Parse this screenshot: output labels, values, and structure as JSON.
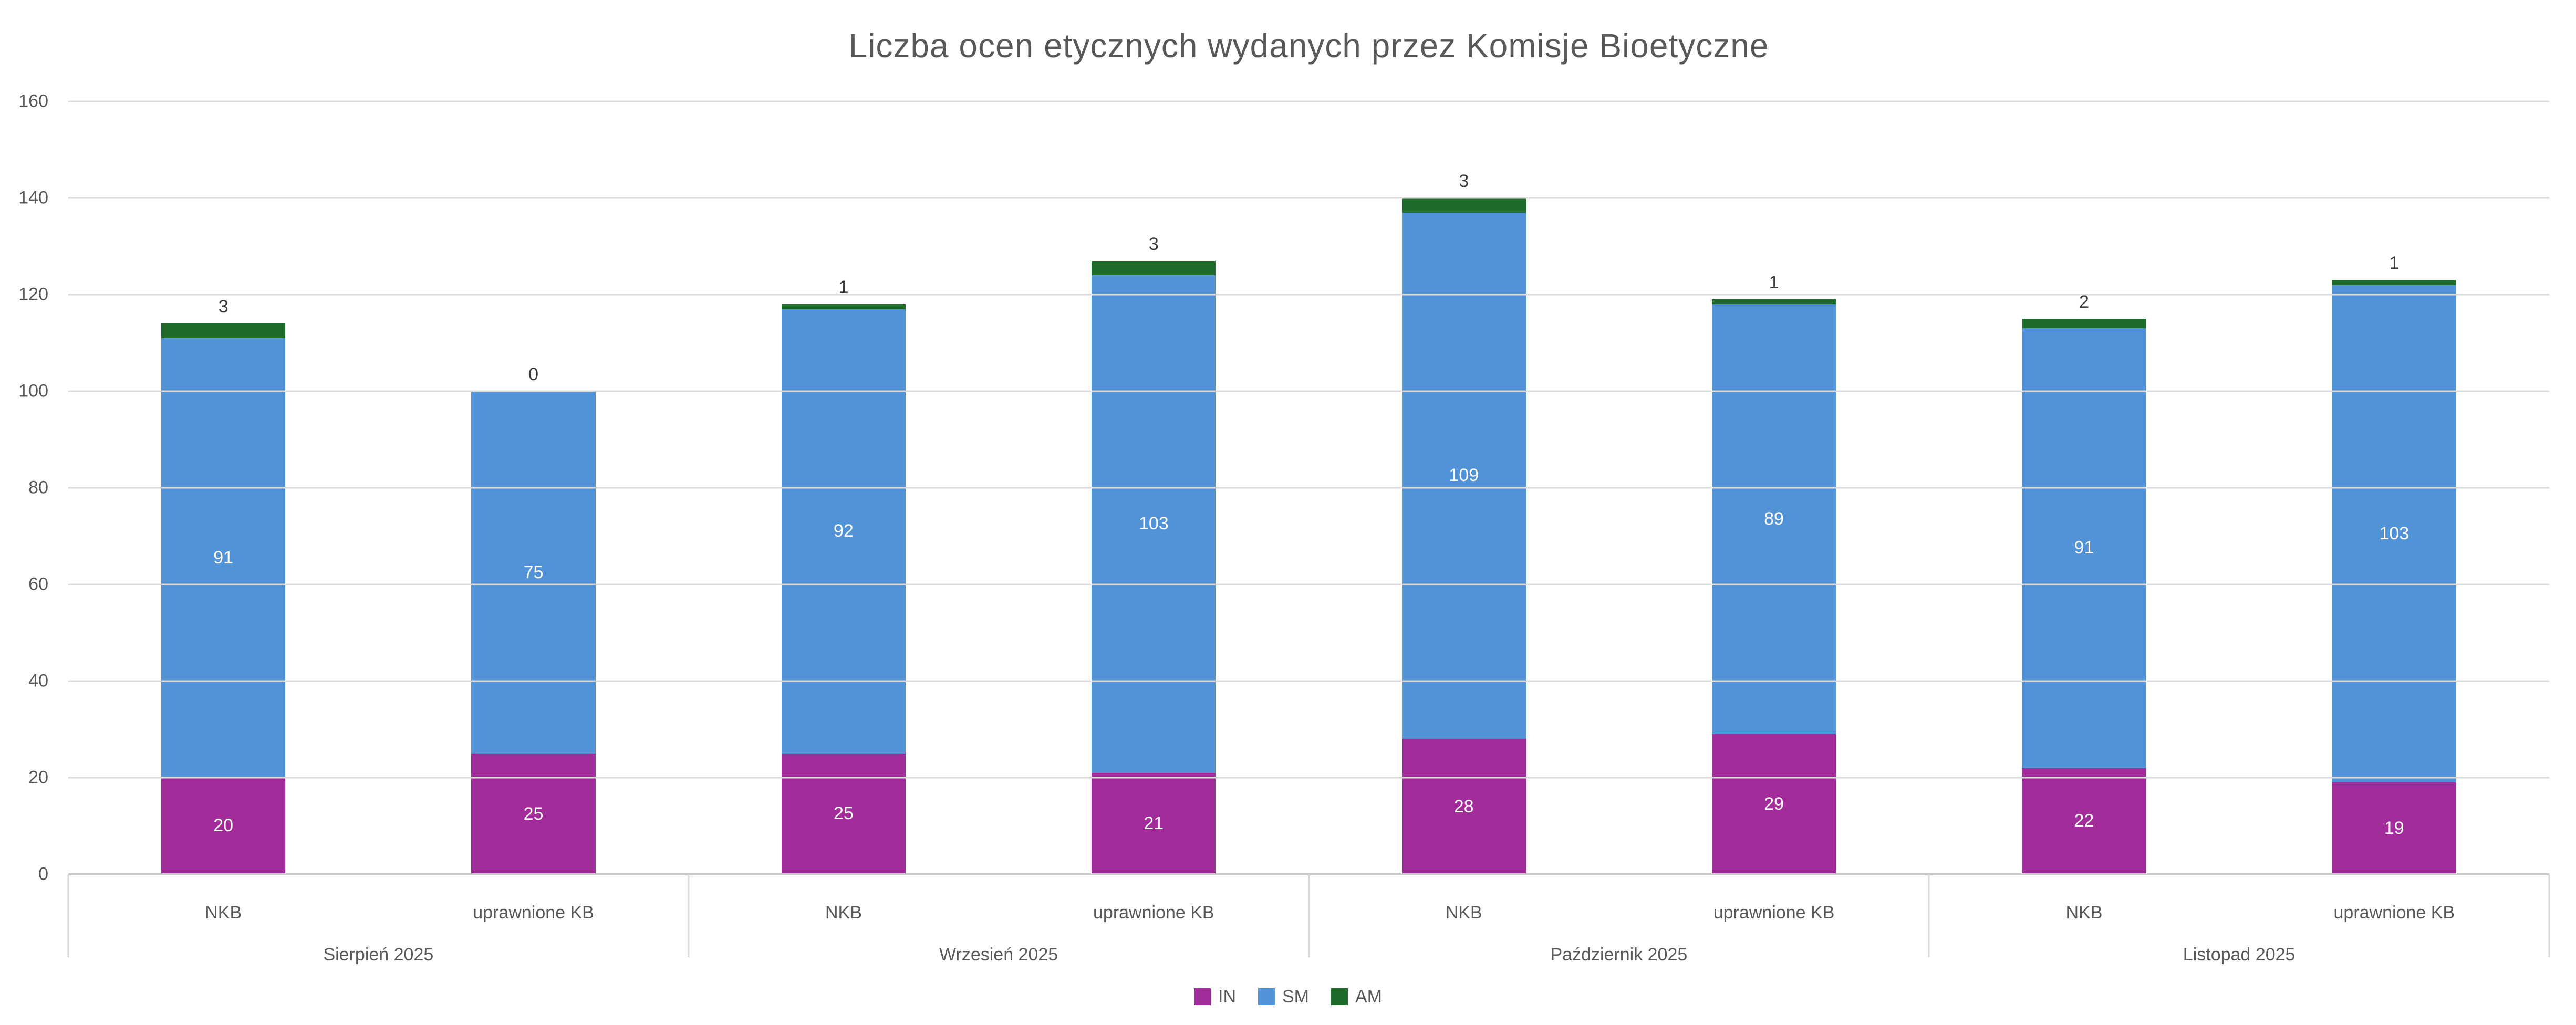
{
  "title": "Liczba ocen etycznych wydanych przez Komisje Bioetyczne",
  "colors": {
    "IN": "#A22C99",
    "SM": "#5293D7",
    "AM": "#1E6B2A",
    "gridline": "#DBDBDB",
    "axis_line": "#C9C9C9",
    "axis_text": "#595959",
    "title_text": "#595959",
    "inside_label_text": "#FFFFFF",
    "above_label_text": "#3A3A3A"
  },
  "chart_data": {
    "type": "bar",
    "stacked": true,
    "title": "Liczba ocen etycznych wydanych przez Komisje Bioetyczne",
    "xlabel": "",
    "ylabel": "",
    "ylim": [
      0,
      160
    ],
    "yticks": [
      0,
      20,
      40,
      60,
      80,
      100,
      120,
      140,
      160
    ],
    "grid": true,
    "legend_position": "bottom",
    "series_names": [
      "IN",
      "SM",
      "AM"
    ],
    "legend": [
      "IN",
      "SM",
      "AM"
    ],
    "groups": [
      {
        "label": "Sierpień 2025",
        "bars": [
          {
            "label": "NKB",
            "values": {
              "IN": 20,
              "SM": 91,
              "AM": 3
            }
          },
          {
            "label": "uprawnione KB",
            "values": {
              "IN": 25,
              "SM": 75,
              "AM": 0
            }
          }
        ]
      },
      {
        "label": "Wrzesień 2025",
        "bars": [
          {
            "label": "NKB",
            "values": {
              "IN": 25,
              "SM": 92,
              "AM": 1
            }
          },
          {
            "label": "uprawnione KB",
            "values": {
              "IN": 21,
              "SM": 103,
              "AM": 3
            }
          }
        ]
      },
      {
        "label": "Październik 2025",
        "bars": [
          {
            "label": "NKB",
            "values": {
              "IN": 28,
              "SM": 109,
              "AM": 3
            }
          },
          {
            "label": "uprawnione KB",
            "values": {
              "IN": 29,
              "SM": 89,
              "AM": 1
            }
          }
        ]
      },
      {
        "label": "Listopad 2025",
        "bars": [
          {
            "label": "NKB",
            "values": {
              "IN": 22,
              "SM": 91,
              "AM": 2
            }
          },
          {
            "label": "uprawnione KB",
            "values": {
              "IN": 19,
              "SM": 103,
              "AM": 1
            }
          }
        ]
      }
    ]
  }
}
